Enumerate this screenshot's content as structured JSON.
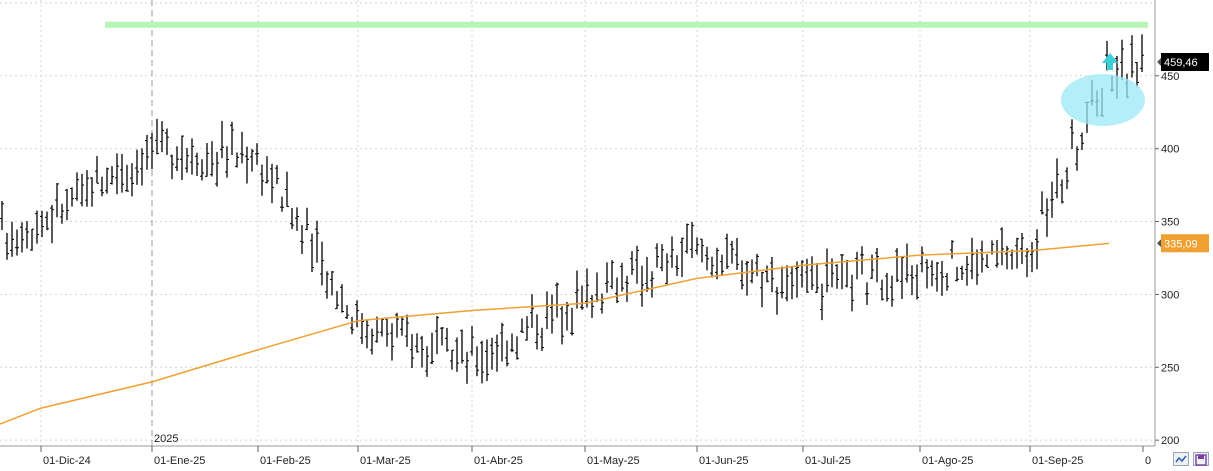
{
  "chart_data": {
    "type": "candlestick-bar",
    "y_ticks": [
      200,
      250,
      300,
      350,
      400,
      450
    ],
    "ylim": [
      196,
      502
    ],
    "x_labels": [
      "01-Dic-24",
      "01-Ene-25",
      "01-Feb-25",
      "01-Mar-25",
      "01-Abr-25",
      "01-May-25",
      "01-Jun-25",
      "01-Jul-25",
      "01-Ago-25",
      "01-Sep-25",
      "0"
    ],
    "year_marker": "2025",
    "last_price": "459,46",
    "ma_value": "335,09",
    "resistance_level": 485,
    "grid": true,
    "colors": {
      "bars": "#000000",
      "moving_average": "#f0a030",
      "resistance": "#b6f5b6",
      "highlight": "#9be8f5",
      "arrow": "#3ccfd8",
      "price_badge": "#000000",
      "ma_badge": "#f0a030"
    },
    "moving_average": {
      "name": "",
      "x": [
        "25-Oct-24",
        "01-Dic-24",
        "01-Ene-25",
        "01-Feb-25",
        "01-Mar-25",
        "01-Abr-25",
        "01-May-25",
        "01-Jun-25",
        "01-Jul-25",
        "01-Ago-25",
        "01-Sep-25",
        "22-Sep-25"
      ],
      "y": [
        211,
        222,
        240,
        262,
        282,
        289,
        294,
        311,
        320,
        327,
        330,
        335
      ]
    },
    "ohlc": {
      "x": [
        "25-Oct-24",
        "01-Dic-24",
        "01-Ene-25",
        "01-Feb-25",
        "01-Mar-25",
        "01-Abr-25",
        "01-May-25",
        "01-Jun-25",
        "01-Jul-25",
        "01-Ago-25",
        "01-Sep-25",
        "22-Sep-25"
      ],
      "anchor_close": [
        340,
        350,
        400,
        395,
        280,
        255,
        300,
        330,
        305,
        315,
        330,
        455
      ]
    }
  },
  "icons": [
    "zoom-icon",
    "save-icon"
  ]
}
